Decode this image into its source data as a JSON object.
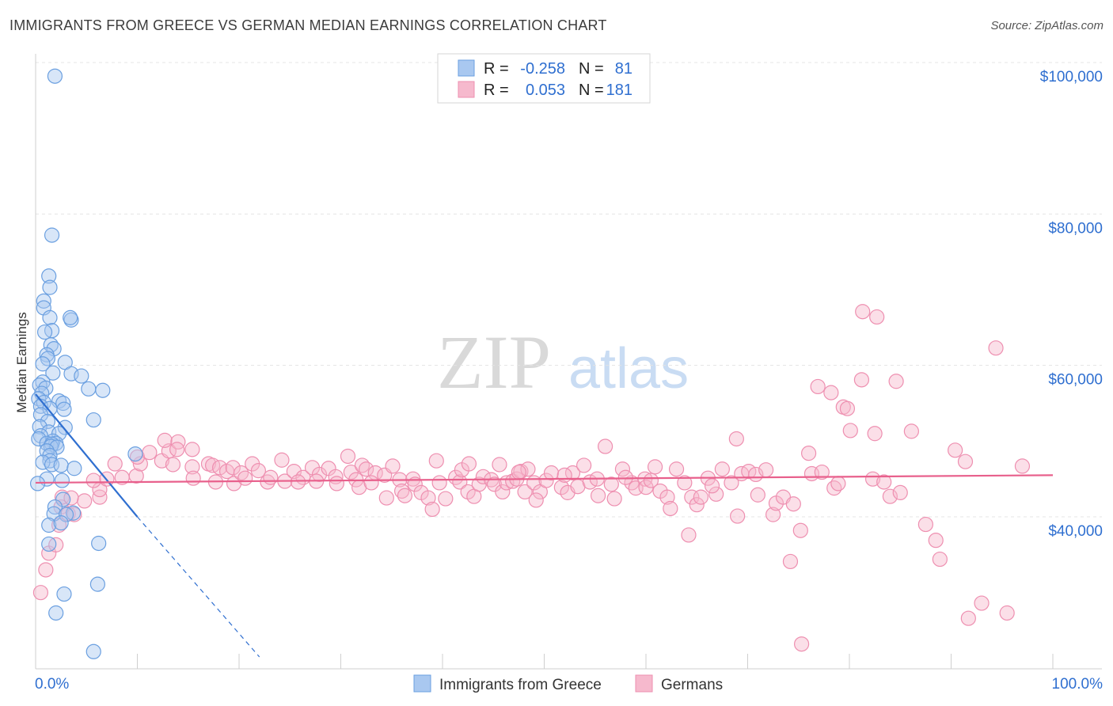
{
  "header": {
    "title": "IMMIGRANTS FROM GREECE VS GERMAN MEDIAN EARNINGS CORRELATION CHART",
    "source": "Source: ZipAtlas.com"
  },
  "watermark": {
    "zip": "ZIP",
    "atlas": "atlas"
  },
  "colors": {
    "blue_fill": "#a9c8f0",
    "blue_stroke": "#6a9fe0",
    "blue_line": "#2f6fd0",
    "pink_fill": "#f6b9cd",
    "pink_stroke": "#ee8fb0",
    "pink_line": "#e8608c",
    "grid": "#e4e4e4",
    "axis_text": "#2f6fd0"
  },
  "legend": {
    "rows": [
      {
        "r_label": "R =",
        "r_value": "-0.258",
        "n_label": "N =",
        "n_value": "81"
      },
      {
        "r_label": "R =",
        "r_value": "0.053",
        "n_label": "N =",
        "n_value": "181"
      }
    ]
  },
  "chart_data": {
    "type": "scatter",
    "title": "IMMIGRANTS FROM GREECE VS GERMAN MEDIAN EARNINGS CORRELATION CHART",
    "xlabel": "",
    "ylabel": "Median Earnings",
    "xlim": [
      0,
      100
    ],
    "ylim": [
      20000,
      102000
    ],
    "x_tick_labels": [
      "0.0%",
      "100.0%"
    ],
    "y_ticks": [
      40000,
      60000,
      80000,
      100000
    ],
    "y_tick_labels": [
      "$40,000",
      "$60,000",
      "$80,000",
      "$100,000"
    ],
    "grid": true,
    "legend_position": "top-center",
    "series": [
      {
        "name": "Immigrants from Greece",
        "color": "#a9c8f0",
        "r": -0.258,
        "n": 81,
        "trend": {
          "x0": 0,
          "y0": 56200,
          "x1": 10,
          "y1": 40000,
          "dashed_to_x": 22,
          "dashed_to_y": 21500
        },
        "points": [
          [
            1.9,
            98200
          ],
          [
            1.6,
            77200
          ],
          [
            1.3,
            71800
          ],
          [
            1.4,
            70300
          ],
          [
            0.8,
            68500
          ],
          [
            0.8,
            67600
          ],
          [
            1.4,
            66300
          ],
          [
            3.5,
            66000
          ],
          [
            3.4,
            66300
          ],
          [
            1.6,
            64600
          ],
          [
            0.9,
            64400
          ],
          [
            1.5,
            62700
          ],
          [
            1.8,
            62200
          ],
          [
            1.1,
            61400
          ],
          [
            1.2,
            60900
          ],
          [
            2.9,
            60400
          ],
          [
            0.7,
            60200
          ],
          [
            1.7,
            59000
          ],
          [
            3.5,
            58900
          ],
          [
            4.5,
            58600
          ],
          [
            0.7,
            57800
          ],
          [
            0.4,
            57400
          ],
          [
            1.0,
            57000
          ],
          [
            5.2,
            56900
          ],
          [
            6.6,
            56700
          ],
          [
            0.6,
            56300
          ],
          [
            0.3,
            55600
          ],
          [
            2.3,
            55300
          ],
          [
            0.8,
            55100
          ],
          [
            2.7,
            55000
          ],
          [
            0.5,
            54600
          ],
          [
            1.4,
            54300
          ],
          [
            2.8,
            54200
          ],
          [
            0.5,
            53500
          ],
          [
            5.7,
            52800
          ],
          [
            1.2,
            52600
          ],
          [
            0.4,
            51900
          ],
          [
            2.9,
            51800
          ],
          [
            1.3,
            51200
          ],
          [
            2.3,
            51000
          ],
          [
            0.5,
            50700
          ],
          [
            0.3,
            50300
          ],
          [
            1.7,
            50000
          ],
          [
            1.1,
            49700
          ],
          [
            2.0,
            49700
          ],
          [
            1.6,
            49600
          ],
          [
            1.5,
            49300
          ],
          [
            2.1,
            49200
          ],
          [
            1.1,
            48700
          ],
          [
            1.4,
            48100
          ],
          [
            1.4,
            47400
          ],
          [
            0.7,
            47200
          ],
          [
            1.6,
            46900
          ],
          [
            2.5,
            46800
          ],
          [
            3.8,
            46400
          ],
          [
            9.8,
            48300
          ],
          [
            1.1,
            45000
          ],
          [
            2.6,
            44800
          ],
          [
            0.2,
            44400
          ],
          [
            2.7,
            42300
          ],
          [
            1.9,
            41300
          ],
          [
            1.8,
            40400
          ],
          [
            3.7,
            40500
          ],
          [
            3.0,
            40300
          ],
          [
            1.3,
            38900
          ],
          [
            2.5,
            39200
          ],
          [
            1.3,
            36400
          ],
          [
            6.2,
            36500
          ],
          [
            6.1,
            31100
          ],
          [
            2.8,
            29800
          ],
          [
            2.0,
            27300
          ],
          [
            5.7,
            22200
          ]
        ]
      },
      {
        "name": "Germans",
        "color": "#f6b9cd",
        "r": 0.053,
        "n": 181,
        "trend": {
          "x0": 0,
          "y0": 44500,
          "x1": 100,
          "y1": 45500
        },
        "points": [
          [
            0.5,
            30000
          ],
          [
            1.0,
            33000
          ],
          [
            1.3,
            35200
          ],
          [
            2.0,
            36300
          ],
          [
            2.3,
            38900
          ],
          [
            2.5,
            41300
          ],
          [
            3.2,
            40400
          ],
          [
            3.8,
            40300
          ],
          [
            4.8,
            42100
          ],
          [
            2.6,
            42600
          ],
          [
            3.5,
            42500
          ],
          [
            6.3,
            42600
          ],
          [
            6.3,
            43600
          ],
          [
            5.7,
            44800
          ],
          [
            7.0,
            45000
          ],
          [
            8.5,
            45200
          ],
          [
            9.9,
            45400
          ],
          [
            10.3,
            47000
          ],
          [
            7.8,
            47000
          ],
          [
            10.0,
            47900
          ],
          [
            12.4,
            47400
          ],
          [
            11.2,
            48500
          ],
          [
            13.1,
            48700
          ],
          [
            12.7,
            50100
          ],
          [
            14.0,
            49900
          ],
          [
            13.9,
            48900
          ],
          [
            15.4,
            48900
          ],
          [
            13.5,
            46900
          ],
          [
            15.4,
            46600
          ],
          [
            15.5,
            45100
          ],
          [
            17.0,
            47000
          ],
          [
            17.4,
            46800
          ],
          [
            18.1,
            46500
          ],
          [
            17.7,
            44600
          ],
          [
            18.8,
            46000
          ],
          [
            19.4,
            46500
          ],
          [
            19.5,
            44400
          ],
          [
            20.2,
            45800
          ],
          [
            20.6,
            45100
          ],
          [
            21.3,
            47000
          ],
          [
            21.9,
            46100
          ],
          [
            22.8,
            44600
          ],
          [
            23.1,
            45200
          ],
          [
            24.2,
            47500
          ],
          [
            24.5,
            44700
          ],
          [
            25.4,
            46000
          ],
          [
            26.3,
            45200
          ],
          [
            25.8,
            44600
          ],
          [
            27.2,
            46500
          ],
          [
            27.9,
            45600
          ],
          [
            27.6,
            44700
          ],
          [
            28.8,
            46400
          ],
          [
            29.5,
            45300
          ],
          [
            29.6,
            44400
          ],
          [
            30.7,
            48000
          ],
          [
            31.0,
            45900
          ],
          [
            31.5,
            44900
          ],
          [
            31.8,
            43900
          ],
          [
            32.1,
            46800
          ],
          [
            32.5,
            46300
          ],
          [
            33.4,
            45800
          ],
          [
            33.0,
            44500
          ],
          [
            34.3,
            45500
          ],
          [
            34.5,
            42500
          ],
          [
            35.1,
            46700
          ],
          [
            35.8,
            44900
          ],
          [
            36.0,
            43400
          ],
          [
            36.3,
            42800
          ],
          [
            37.1,
            45000
          ],
          [
            37.3,
            44300
          ],
          [
            37.9,
            43200
          ],
          [
            38.6,
            42500
          ],
          [
            39.0,
            41000
          ],
          [
            39.4,
            47400
          ],
          [
            39.7,
            44500
          ],
          [
            40.3,
            42400
          ],
          [
            41.3,
            45200
          ],
          [
            41.7,
            44600
          ],
          [
            41.9,
            46200
          ],
          [
            42.6,
            47000
          ],
          [
            42.5,
            43300
          ],
          [
            43.1,
            42700
          ],
          [
            43.6,
            44300
          ],
          [
            44.0,
            45300
          ],
          [
            44.8,
            44900
          ],
          [
            45.1,
            44300
          ],
          [
            45.6,
            46900
          ],
          [
            45.9,
            43300
          ],
          [
            46.3,
            44500
          ],
          [
            46.9,
            44700
          ],
          [
            47.3,
            45000
          ],
          [
            47.7,
            46000
          ],
          [
            48.4,
            46300
          ],
          [
            48.1,
            43300
          ],
          [
            49.0,
            44500
          ],
          [
            49.6,
            43300
          ],
          [
            50.2,
            44800
          ],
          [
            50.7,
            45800
          ],
          [
            51.7,
            43900
          ],
          [
            52.3,
            43200
          ],
          [
            52.8,
            45800
          ],
          [
            53.3,
            44000
          ],
          [
            53.9,
            46800
          ],
          [
            54.5,
            44600
          ],
          [
            55.2,
            45000
          ],
          [
            55.3,
            42800
          ],
          [
            56.0,
            49300
          ],
          [
            56.6,
            44300
          ],
          [
            56.9,
            42400
          ],
          [
            57.7,
            46300
          ],
          [
            58.6,
            44500
          ],
          [
            59.0,
            43800
          ],
          [
            59.9,
            45000
          ],
          [
            60.0,
            43900
          ],
          [
            60.5,
            44800
          ],
          [
            60.9,
            46600
          ],
          [
            61.4,
            43400
          ],
          [
            62.1,
            42600
          ],
          [
            62.4,
            41100
          ],
          [
            63.0,
            46300
          ],
          [
            63.8,
            44500
          ],
          [
            64.2,
            37600
          ],
          [
            64.5,
            42600
          ],
          [
            65.0,
            41600
          ],
          [
            65.4,
            42600
          ],
          [
            66.1,
            45100
          ],
          [
            66.9,
            43000
          ],
          [
            67.5,
            46300
          ],
          [
            68.4,
            44500
          ],
          [
            68.9,
            50300
          ],
          [
            69.0,
            40100
          ],
          [
            69.4,
            45700
          ],
          [
            70.1,
            46000
          ],
          [
            70.8,
            45600
          ],
          [
            71.0,
            42900
          ],
          [
            71.8,
            46200
          ],
          [
            72.5,
            40300
          ],
          [
            72.8,
            41800
          ],
          [
            73.5,
            42600
          ],
          [
            74.2,
            34100
          ],
          [
            74.5,
            41700
          ],
          [
            75.2,
            38200
          ],
          [
            76.0,
            48400
          ],
          [
            76.3,
            45700
          ],
          [
            76.9,
            57200
          ],
          [
            77.3,
            45900
          ],
          [
            78.2,
            56400
          ],
          [
            78.5,
            43800
          ],
          [
            78.9,
            44400
          ],
          [
            79.4,
            54500
          ],
          [
            79.8,
            54300
          ],
          [
            80.1,
            51400
          ],
          [
            81.2,
            58100
          ],
          [
            81.3,
            67100
          ],
          [
            82.3,
            45000
          ],
          [
            82.5,
            51000
          ],
          [
            82.7,
            66400
          ],
          [
            83.4,
            44600
          ],
          [
            84.0,
            42700
          ],
          [
            84.6,
            57900
          ],
          [
            85.0,
            43200
          ],
          [
            86.1,
            51300
          ],
          [
            87.5,
            39000
          ],
          [
            88.5,
            36900
          ],
          [
            88.9,
            34400
          ],
          [
            90.4,
            48800
          ],
          [
            91.4,
            47300
          ],
          [
            91.7,
            26600
          ],
          [
            93.0,
            28600
          ],
          [
            94.4,
            62300
          ],
          [
            95.5,
            27300
          ],
          [
            97.0,
            46700
          ],
          [
            75.3,
            23200
          ],
          [
            47.5,
            45900
          ],
          [
            52.0,
            45500
          ],
          [
            58.0,
            45200
          ],
          [
            66.5,
            44100
          ],
          [
            49.2,
            42200
          ]
        ]
      }
    ]
  },
  "bottom_legend": {
    "items": [
      {
        "label": "Immigrants from Greece"
      },
      {
        "label": "Germans"
      }
    ]
  }
}
